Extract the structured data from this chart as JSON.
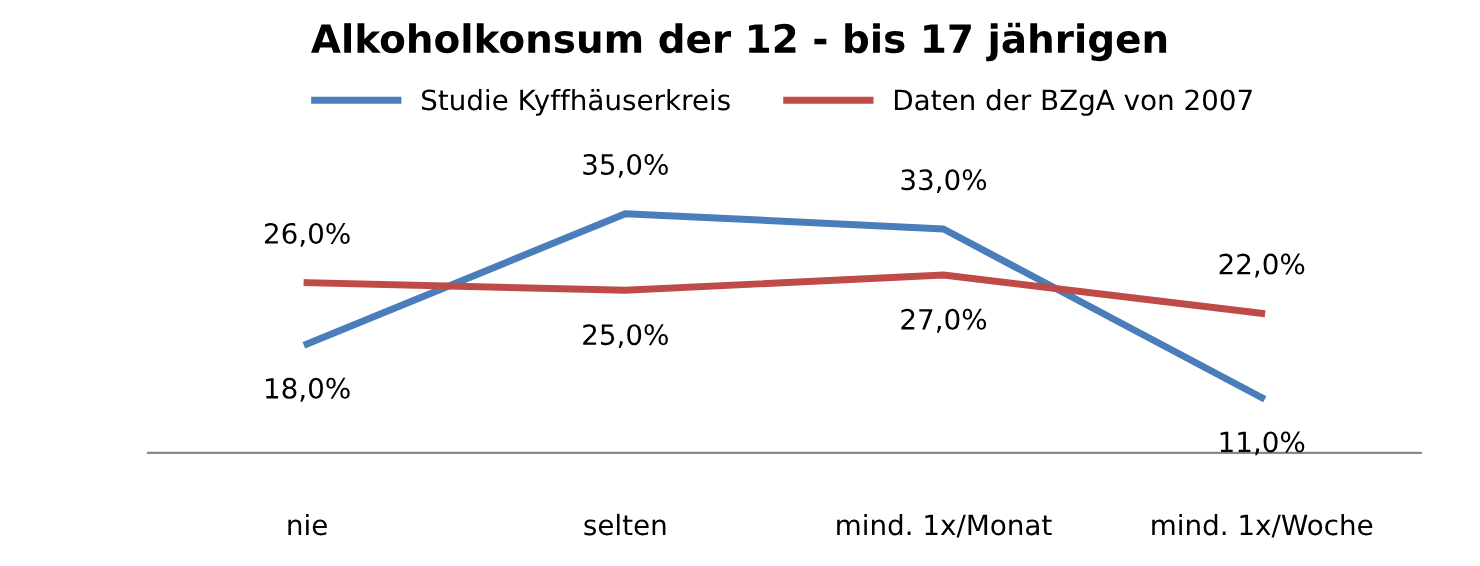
{
  "chart_data": {
    "type": "line",
    "title": "Alkoholkonsum der 12 - bis 17 jährigen",
    "categories": [
      "nie",
      "selten",
      "mind. 1x/Monat",
      "mind. 1x/Woche"
    ],
    "series": [
      {
        "name": "Studie Kyffhäuserkreis",
        "color": "#4a7ebb",
        "values": [
          18,
          35,
          33,
          11
        ],
        "value_labels": [
          "18,0%",
          "35,0%",
          "33,0%",
          "11,0%"
        ]
      },
      {
        "name": "Daten der BZgA von 2007",
        "color": "#be4b48",
        "values": [
          26,
          25,
          27,
          22
        ],
        "value_labels": [
          "26,0%",
          "25,0%",
          "27,0%",
          "22,0%"
        ]
      }
    ],
    "legend": "top",
    "grid": false,
    "marker": "none",
    "line_style": "solid"
  }
}
